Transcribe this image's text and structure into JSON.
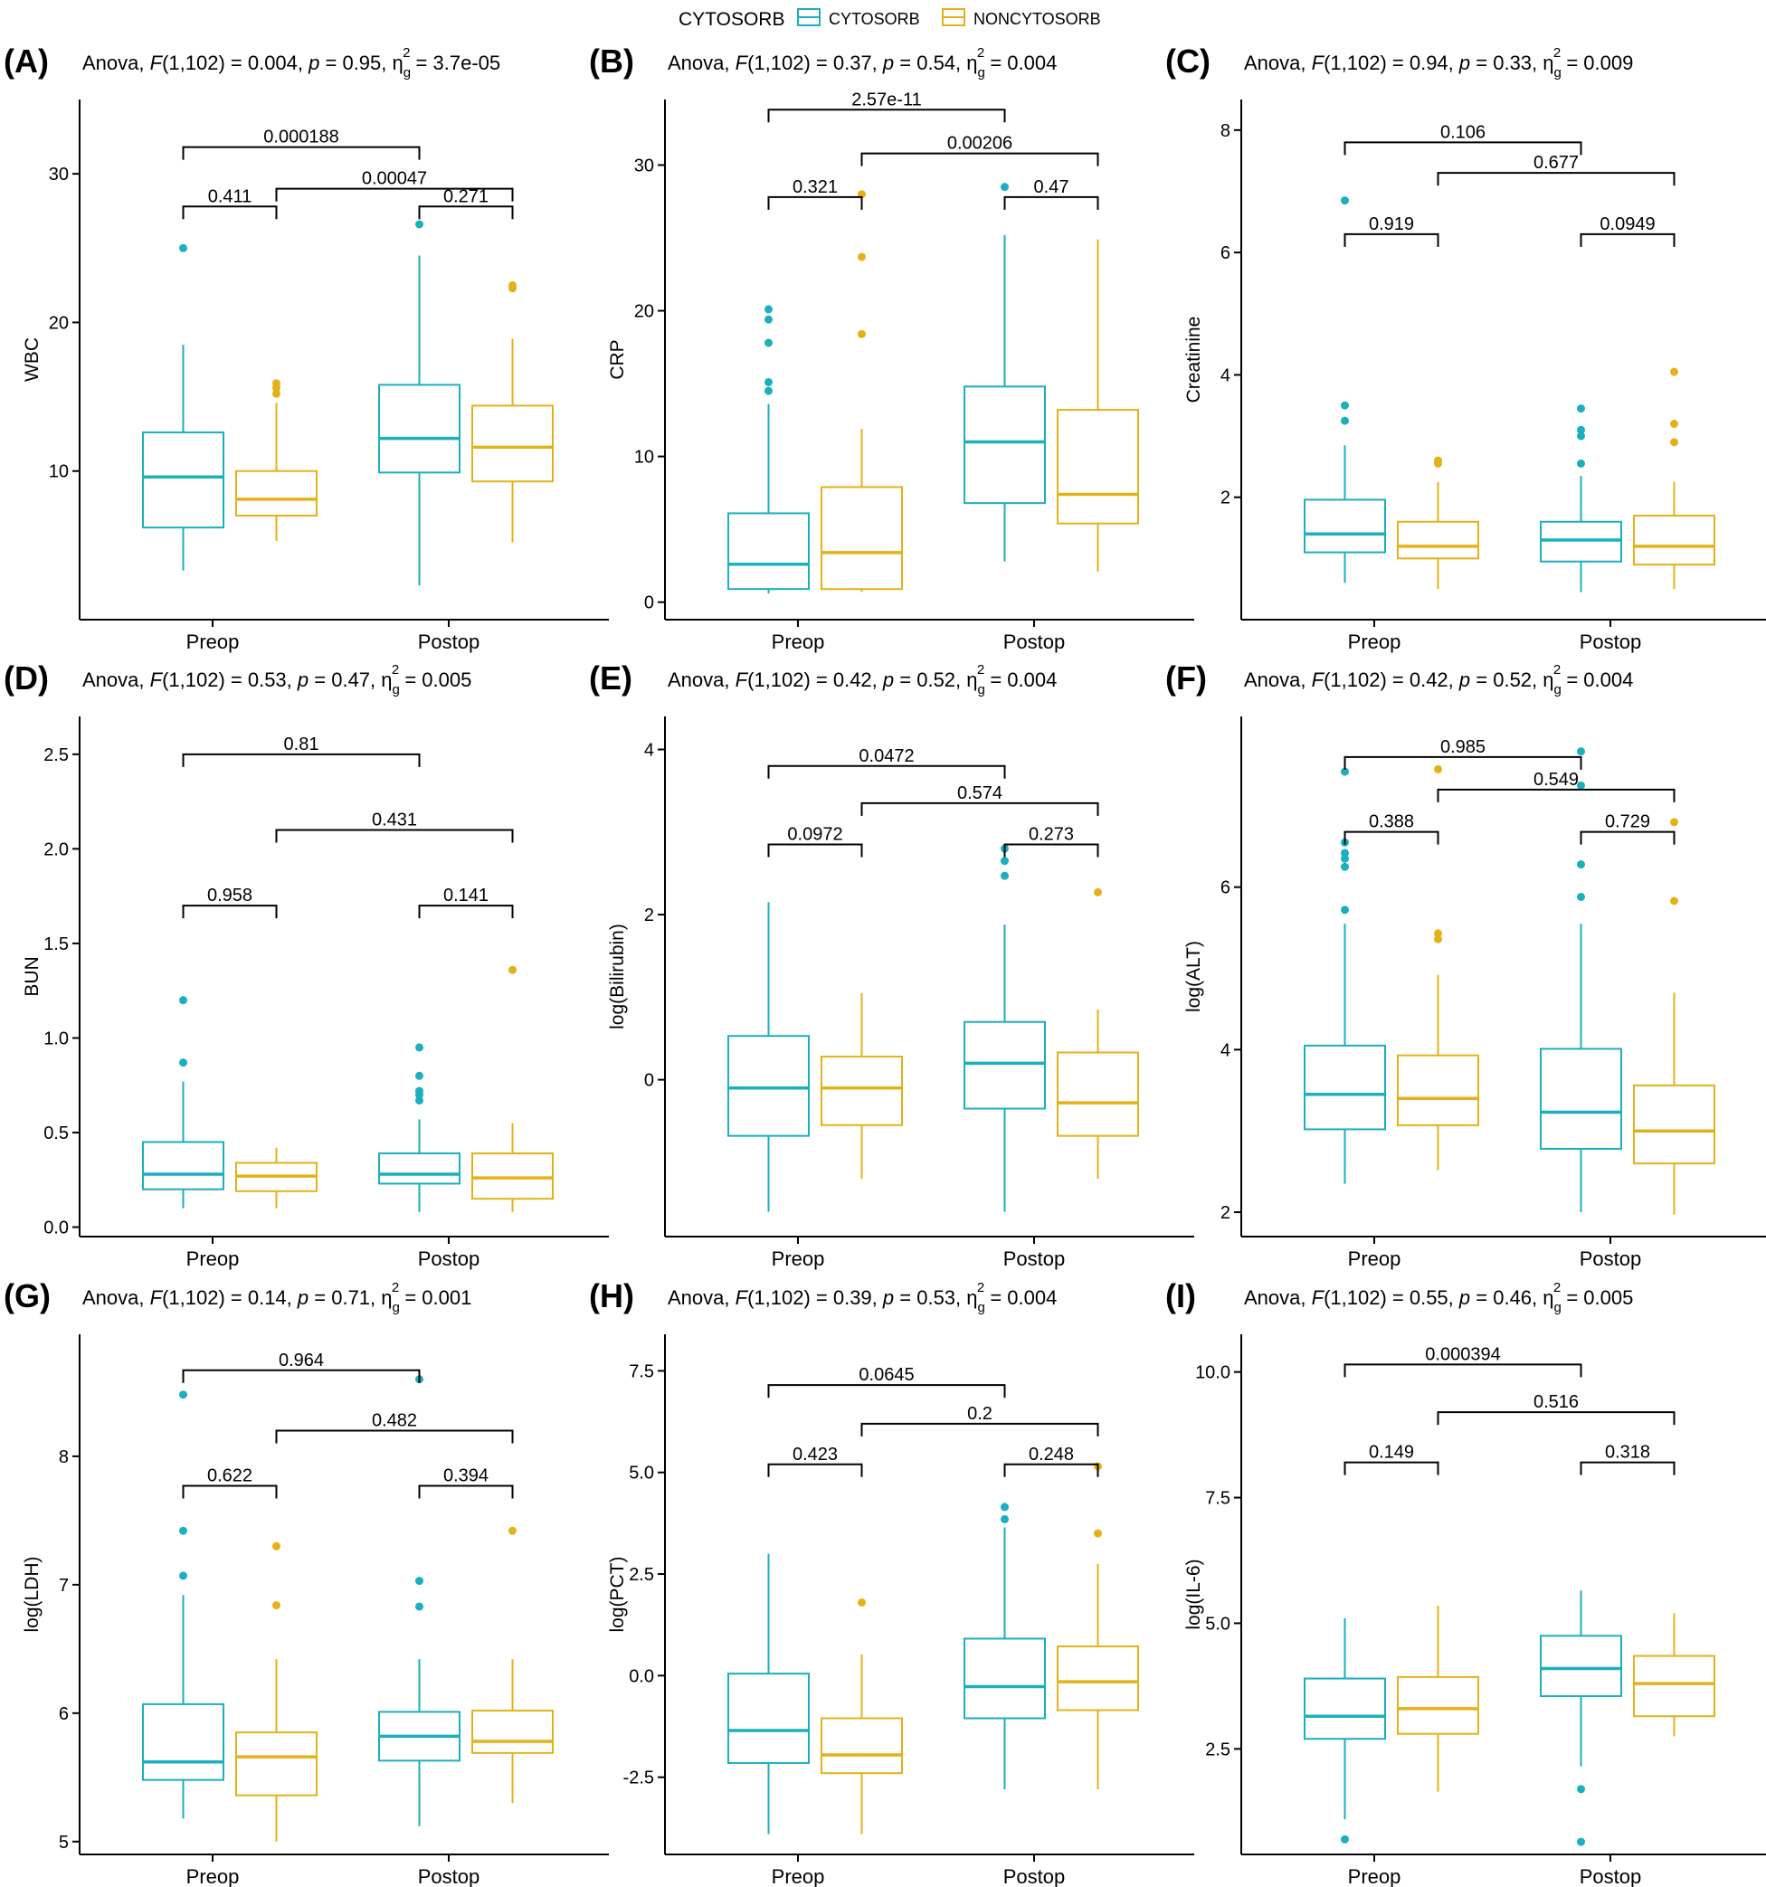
{
  "legend": {
    "title": "CYTOSORB",
    "items": [
      {
        "label": "CYTOSORB",
        "color": "#1BAFBF"
      },
      {
        "label": "NONCYTOSORB",
        "color": "#E4B218"
      }
    ]
  },
  "chart_data": [
    {
      "panel": "(A)",
      "type": "boxplot",
      "ylabel": "WBC",
      "anova": {
        "F": "F(1,102) = 0.004",
        "p": "p = 0.95",
        "eta": "= 3.7e-05"
      },
      "categories": [
        "Preop",
        "Postop"
      ],
      "yticks": [
        "10",
        "20",
        "30"
      ],
      "ylim": [
        0,
        35
      ],
      "series": [
        {
          "name": "CYTOSORB",
          "boxes": [
            {
              "q1": 6.2,
              "median": 9.6,
              "q3": 12.6,
              "low": 3.3,
              "high": 18.5,
              "outliers": [
                25.0
              ]
            },
            {
              "q1": 9.9,
              "median": 12.2,
              "q3": 15.8,
              "low": 2.3,
              "high": 24.5,
              "outliers": [
                26.6
              ]
            }
          ]
        },
        {
          "name": "NONCYTOSORB",
          "boxes": [
            {
              "q1": 7.0,
              "median": 8.1,
              "q3": 10.0,
              "low": 5.3,
              "high": 14.6,
              "outliers": [
                15.2,
                15.6,
                15.9
              ]
            },
            {
              "q1": 9.3,
              "median": 11.6,
              "q3": 14.4,
              "low": 5.2,
              "high": 18.9,
              "outliers": [
                22.3,
                22.5
              ]
            }
          ]
        }
      ],
      "comparisons": [
        {
          "label": "0.000188",
          "from": 0,
          "to": 2,
          "y": 31.8
        },
        {
          "label": "0.00047",
          "from": 1,
          "to": 3,
          "y": 29.0
        },
        {
          "label": "0.411",
          "from": 0,
          "to": 1,
          "y": 27.8
        },
        {
          "label": "0.271",
          "from": 2,
          "to": 3,
          "y": 27.8
        }
      ]
    },
    {
      "panel": "(B)",
      "type": "boxplot",
      "ylabel": "CRP",
      "anova": {
        "F": "F(1,102) = 0.37",
        "p": "p = 0.54",
        "eta": "= 0.004"
      },
      "categories": [
        "Preop",
        "Postop"
      ],
      "yticks": [
        "0",
        "10",
        "20",
        "30"
      ],
      "ylim": [
        -1.2,
        34.5
      ],
      "series": [
        {
          "name": "CYTOSORB",
          "boxes": [
            {
              "q1": 0.9,
              "median": 2.6,
              "q3": 6.1,
              "low": 0.6,
              "high": 13.6,
              "outliers": [
                14.5,
                15.1,
                17.8,
                19.4,
                20.1
              ]
            },
            {
              "q1": 6.8,
              "median": 11.0,
              "q3": 14.8,
              "low": 2.8,
              "high": 25.2,
              "outliers": [
                28.5
              ]
            }
          ]
        },
        {
          "name": "NONCYTOSORB",
          "boxes": [
            {
              "q1": 0.9,
              "median": 3.4,
              "q3": 7.9,
              "low": 0.7,
              "high": 11.9,
              "outliers": [
                18.4,
                23.7,
                28.0
              ]
            },
            {
              "q1": 5.4,
              "median": 7.4,
              "q3": 13.2,
              "low": 2.1,
              "high": 24.9,
              "outliers": []
            }
          ]
        }
      ],
      "comparisons": [
        {
          "label": "2.57e-11",
          "from": 0,
          "to": 2,
          "y": 33.8
        },
        {
          "label": "0.00206",
          "from": 1,
          "to": 3,
          "y": 30.8
        },
        {
          "label": "0.321",
          "from": 0,
          "to": 1,
          "y": 27.8
        },
        {
          "label": "0.47",
          "from": 2,
          "to": 3,
          "y": 27.8
        }
      ]
    },
    {
      "panel": "(C)",
      "type": "boxplot",
      "ylabel": "Creatinine",
      "anova": {
        "F": "F(1,102) = 0.94",
        "p": "p = 0.33",
        "eta": "= 0.009"
      },
      "categories": [
        "Preop",
        "Postop"
      ],
      "yticks": [
        "2",
        "4",
        "6",
        "8"
      ],
      "ylim": [
        0.0,
        8.5
      ],
      "series": [
        {
          "name": "CYTOSORB",
          "boxes": [
            {
              "q1": 1.1,
              "median": 1.4,
              "q3": 1.96,
              "low": 0.6,
              "high": 2.85,
              "outliers": [
                3.25,
                3.5,
                6.85
              ]
            },
            {
              "q1": 0.95,
              "median": 1.3,
              "q3": 1.6,
              "low": 0.45,
              "high": 2.35,
              "outliers": [
                2.55,
                3.0,
                3.1,
                3.45
              ]
            }
          ]
        },
        {
          "name": "NONCYTOSORB",
          "boxes": [
            {
              "q1": 1.0,
              "median": 1.2,
              "q3": 1.6,
              "low": 0.5,
              "high": 2.25,
              "outliers": [
                2.55,
                2.6
              ]
            },
            {
              "q1": 0.9,
              "median": 1.2,
              "q3": 1.7,
              "low": 0.5,
              "high": 2.25,
              "outliers": [
                2.9,
                3.2,
                4.05
              ]
            }
          ]
        }
      ],
      "comparisons": [
        {
          "label": "0.106",
          "from": 0,
          "to": 2,
          "y": 7.8
        },
        {
          "label": "0.677",
          "from": 1,
          "to": 3,
          "y": 7.3
        },
        {
          "label": "0.919",
          "from": 0,
          "to": 1,
          "y": 6.3
        },
        {
          "label": "0.0949",
          "from": 2,
          "to": 3,
          "y": 6.3
        }
      ]
    },
    {
      "panel": "(D)",
      "type": "boxplot",
      "ylabel": "BUN",
      "anova": {
        "F": "F(1,102) = 0.53",
        "p": "p = 0.47",
        "eta": "= 0.005"
      },
      "categories": [
        "Preop",
        "Postop"
      ],
      "yticks": [
        "0.0",
        "0.5",
        "1.0",
        "1.5",
        "2.0",
        "2.5"
      ],
      "ylim": [
        -0.05,
        2.7
      ],
      "series": [
        {
          "name": "CYTOSORB",
          "boxes": [
            {
              "q1": 0.2,
              "median": 0.28,
              "q3": 0.45,
              "low": 0.1,
              "high": 0.77,
              "outliers": [
                0.87,
                1.2
              ]
            },
            {
              "q1": 0.23,
              "median": 0.28,
              "q3": 0.39,
              "low": 0.08,
              "high": 0.57,
              "outliers": [
                0.67,
                0.7,
                0.72,
                0.8,
                0.95
              ]
            }
          ]
        },
        {
          "name": "NONCYTOSORB",
          "boxes": [
            {
              "q1": 0.19,
              "median": 0.27,
              "q3": 0.34,
              "low": 0.1,
              "high": 0.42,
              "outliers": []
            },
            {
              "q1": 0.15,
              "median": 0.26,
              "q3": 0.39,
              "low": 0.08,
              "high": 0.55,
              "outliers": [
                1.36
              ]
            }
          ]
        }
      ],
      "comparisons": [
        {
          "label": "0.81",
          "from": 0,
          "to": 2,
          "y": 2.5
        },
        {
          "label": "0.431",
          "from": 1,
          "to": 3,
          "y": 2.1
        },
        {
          "label": "0.958",
          "from": 0,
          "to": 1,
          "y": 1.7
        },
        {
          "label": "0.141",
          "from": 2,
          "to": 3,
          "y": 1.7
        }
      ]
    },
    {
      "panel": "(E)",
      "type": "boxplot",
      "ylabel": "log(Bilirubin)",
      "anova": {
        "F": "F(1,102) = 0.42",
        "p": "p = 0.52",
        "eta": "= 0.004"
      },
      "categories": [
        "Preop",
        "Postop"
      ],
      "yticks": [
        "0",
        "2",
        "4"
      ],
      "ylim": [
        -1.9,
        4.4
      ],
      "series": [
        {
          "name": "CYTOSORB",
          "boxes": [
            {
              "q1": -0.68,
              "median": -0.1,
              "q3": 0.53,
              "low": -1.6,
              "high": 2.15,
              "outliers": []
            },
            {
              "q1": -0.35,
              "median": 0.2,
              "q3": 0.7,
              "low": -1.6,
              "high": 1.88,
              "outliers": [
                2.47,
                2.65,
                2.8
              ]
            }
          ]
        },
        {
          "name": "NONCYTOSORB",
          "boxes": [
            {
              "q1": -0.55,
              "median": -0.1,
              "q3": 0.28,
              "low": -1.2,
              "high": 1.05,
              "outliers": []
            },
            {
              "q1": -0.68,
              "median": -0.28,
              "q3": 0.33,
              "low": -1.2,
              "high": 0.85,
              "outliers": [
                2.27
              ]
            }
          ]
        }
      ],
      "comparisons": [
        {
          "label": "0.0472",
          "from": 0,
          "to": 2,
          "y": 3.8
        },
        {
          "label": "0.574",
          "from": 1,
          "to": 3,
          "y": 3.35
        },
        {
          "label": "0.0972",
          "from": 0,
          "to": 1,
          "y": 2.85
        },
        {
          "label": "0.273",
          "from": 2,
          "to": 3,
          "y": 2.85
        }
      ]
    },
    {
      "panel": "(F)",
      "type": "boxplot",
      "ylabel": "log(ALT)",
      "anova": {
        "F": "F(1,102) = 0.42",
        "p": "p = 0.52",
        "eta": "= 0.004"
      },
      "categories": [
        "Preop",
        "Postop"
      ],
      "yticks": [
        "2",
        "4",
        "6"
      ],
      "ylim": [
        1.7,
        8.1
      ],
      "series": [
        {
          "name": "CYTOSORB",
          "boxes": [
            {
              "q1": 3.02,
              "median": 3.45,
              "q3": 4.05,
              "low": 2.35,
              "high": 5.55,
              "outliers": [
                5.72,
                6.25,
                6.35,
                6.42,
                6.55,
                7.42
              ]
            },
            {
              "q1": 2.78,
              "median": 3.23,
              "q3": 4.01,
              "low": 2.0,
              "high": 5.55,
              "outliers": [
                5.88,
                6.28,
                7.25,
                7.67
              ]
            }
          ]
        },
        {
          "name": "NONCYTOSORB",
          "boxes": [
            {
              "q1": 3.07,
              "median": 3.4,
              "q3": 3.93,
              "low": 2.52,
              "high": 4.92,
              "outliers": [
                5.36,
                5.43,
                7.45
              ]
            },
            {
              "q1": 2.6,
              "median": 3.0,
              "q3": 3.56,
              "low": 1.97,
              "high": 4.7,
              "outliers": [
                5.83,
                6.8
              ]
            }
          ]
        }
      ],
      "comparisons": [
        {
          "label": "0.985",
          "from": 0,
          "to": 2,
          "y": 7.6
        },
        {
          "label": "0.549",
          "from": 1,
          "to": 3,
          "y": 7.2
        },
        {
          "label": "0.388",
          "from": 0,
          "to": 1,
          "y": 6.68
        },
        {
          "label": "0.729",
          "from": 2,
          "to": 3,
          "y": 6.68
        }
      ]
    },
    {
      "panel": "(G)",
      "type": "boxplot",
      "ylabel": "log(LDH)",
      "anova": {
        "F": "F(1,102) = 0.14",
        "p": "p = 0.71",
        "eta": "= 0.001"
      },
      "categories": [
        "Preop",
        "Postop"
      ],
      "yticks": [
        "5",
        "6",
        "7",
        "8"
      ],
      "ylim": [
        4.9,
        8.95
      ],
      "series": [
        {
          "name": "CYTOSORB",
          "boxes": [
            {
              "q1": 5.48,
              "median": 5.62,
              "q3": 6.07,
              "low": 5.18,
              "high": 6.92,
              "outliers": [
                7.07,
                7.42,
                8.48
              ]
            },
            {
              "q1": 5.63,
              "median": 5.82,
              "q3": 6.01,
              "low": 5.12,
              "high": 6.42,
              "outliers": [
                6.83,
                7.03,
                8.6
              ]
            }
          ]
        },
        {
          "name": "NONCYTOSORB",
          "boxes": [
            {
              "q1": 5.36,
              "median": 5.66,
              "q3": 5.85,
              "low": 5.0,
              "high": 6.42,
              "outliers": [
                6.84,
                7.3
              ]
            },
            {
              "q1": 5.69,
              "median": 5.78,
              "q3": 6.02,
              "low": 5.3,
              "high": 6.42,
              "outliers": [
                7.42
              ]
            }
          ]
        }
      ],
      "comparisons": [
        {
          "label": "0.964",
          "from": 0,
          "to": 2,
          "y": 8.67
        },
        {
          "label": "0.482",
          "from": 1,
          "to": 3,
          "y": 8.2
        },
        {
          "label": "0.622",
          "from": 0,
          "to": 1,
          "y": 7.77
        },
        {
          "label": "0.394",
          "from": 2,
          "to": 3,
          "y": 7.77
        }
      ]
    },
    {
      "panel": "(H)",
      "type": "boxplot",
      "ylabel": "log(PCT)",
      "anova": {
        "F": "F(1,102) = 0.39",
        "p": "p = 0.53",
        "eta": "= 0.004"
      },
      "categories": [
        "Preop",
        "Postop"
      ],
      "yticks": [
        "-2.5",
        "0.0",
        "2.5",
        "5.0",
        "7.5"
      ],
      "ylim": [
        -4.4,
        8.4
      ],
      "series": [
        {
          "name": "CYTOSORB",
          "boxes": [
            {
              "q1": -2.15,
              "median": -1.35,
              "q3": 0.05,
              "low": -3.9,
              "high": 3.0,
              "outliers": []
            },
            {
              "q1": -1.05,
              "median": -0.27,
              "q3": 0.91,
              "low": -2.8,
              "high": 3.65,
              "outliers": [
                3.85,
                4.15
              ]
            }
          ]
        },
        {
          "name": "NONCYTOSORB",
          "boxes": [
            {
              "q1": -2.4,
              "median": -1.95,
              "q3": -1.05,
              "low": -3.9,
              "high": 0.52,
              "outliers": [
                1.8
              ]
            },
            {
              "q1": -0.85,
              "median": -0.15,
              "q3": 0.72,
              "low": -2.8,
              "high": 2.75,
              "outliers": [
                3.5,
                5.15
              ]
            }
          ]
        }
      ],
      "comparisons": [
        {
          "label": "0.0645",
          "from": 0,
          "to": 2,
          "y": 7.15
        },
        {
          "label": "0.2",
          "from": 1,
          "to": 3,
          "y": 6.2
        },
        {
          "label": "0.423",
          "from": 0,
          "to": 1,
          "y": 5.2
        },
        {
          "label": "0.248",
          "from": 2,
          "to": 3,
          "y": 5.2
        }
      ]
    },
    {
      "panel": "(I)",
      "type": "boxplot",
      "ylabel": "log(IL-6)",
      "anova": {
        "F": "F(1,102) = 0.55",
        "p": "p = 0.46",
        "eta": "= 0.005"
      },
      "categories": [
        "Preop",
        "Postop"
      ],
      "yticks": [
        "2.5",
        "5.0",
        "7.5",
        "10.0"
      ],
      "ylim": [
        0.4,
        10.75
      ],
      "series": [
        {
          "name": "CYTOSORB",
          "boxes": [
            {
              "q1": 2.7,
              "median": 3.15,
              "q3": 3.9,
              "low": 1.1,
              "high": 5.1,
              "outliers": [
                0.7
              ]
            },
            {
              "q1": 3.55,
              "median": 4.1,
              "q3": 4.75,
              "low": 2.15,
              "high": 5.65,
              "outliers": [
                0.65,
                1.7
              ]
            }
          ]
        },
        {
          "name": "NONCYTOSORB",
          "boxes": [
            {
              "q1": 2.8,
              "median": 3.3,
              "q3": 3.93,
              "low": 1.65,
              "high": 5.35,
              "outliers": []
            },
            {
              "q1": 3.15,
              "median": 3.8,
              "q3": 4.35,
              "low": 2.75,
              "high": 5.2,
              "outliers": []
            }
          ]
        }
      ],
      "comparisons": [
        {
          "label": "0.000394",
          "from": 0,
          "to": 2,
          "y": 10.15
        },
        {
          "label": "0.516",
          "from": 1,
          "to": 3,
          "y": 9.2
        },
        {
          "label": "0.149",
          "from": 0,
          "to": 1,
          "y": 8.2
        },
        {
          "label": "0.318",
          "from": 2,
          "to": 3,
          "y": 8.2
        }
      ]
    }
  ]
}
